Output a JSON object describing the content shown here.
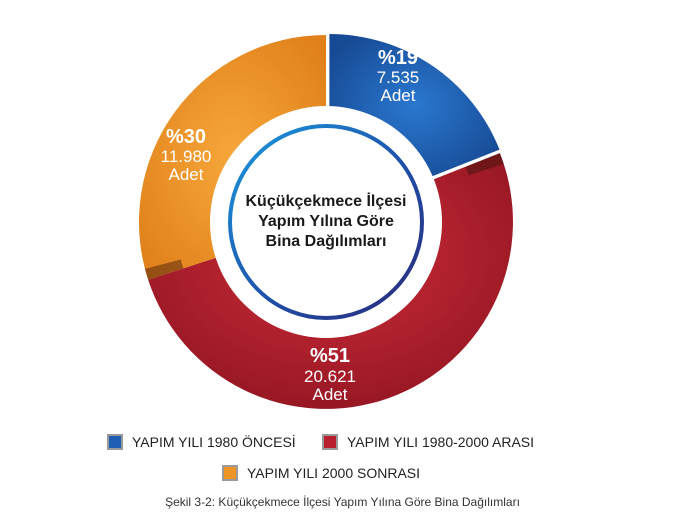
{
  "chart_data": {
    "type": "pie",
    "style": "donut",
    "title": "Küçükçekmece İlçesi Yapım Yılına Göre Bina Dağılımları",
    "center_title_lines": [
      "Küçükçekmece İlçesi",
      "Yapım Yılına Göre",
      "Bina Dağılımları"
    ],
    "slices": [
      {
        "name": "YAPIM YILI 1980 ÖNCESİ",
        "percent_label": "%19",
        "percent": 19,
        "count": "7.535",
        "unit": "Adet",
        "color": "#1f5fb3"
      },
      {
        "name": "YAPIM YILI 1980-2000 ARASI",
        "percent_label": "%51",
        "percent": 51,
        "count": "20.621",
        "unit": "Adet",
        "color": "#b81f2e"
      },
      {
        "name": "YAPIM YILI 2000 SONRASI",
        "percent_label": "%30",
        "percent": 30,
        "count": "11.980",
        "unit": "Adet",
        "color": "#ee9426"
      }
    ]
  },
  "caption": "Şekil 3-2: Küçükçekmece İlçesi Yapım Yılına Göre Bina Dağılımları"
}
